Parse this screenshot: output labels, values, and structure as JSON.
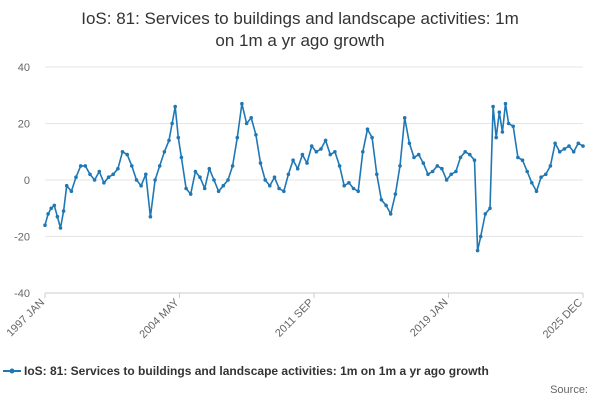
{
  "chart_data": {
    "type": "line",
    "title": "IoS: 81: Services to buildings and landscape activities: 1m on 1m a yr ago growth",
    "title_lines": [
      "IoS: 81: Services to buildings and landscape activities: 1m",
      "on 1m a yr ago growth"
    ],
    "xlabel": "",
    "ylabel": "",
    "xlim": [
      "1997-01",
      "2025-12"
    ],
    "ylim": [
      -40,
      40
    ],
    "y_ticks": [
      -40,
      -20,
      0,
      20,
      40
    ],
    "x_tick_labels": [
      "1997 JAN",
      "2004 MAY",
      "2011 SEP",
      "2019 JAN",
      "2025 DEC"
    ],
    "grid": "horizontal",
    "legend_position": "bottom",
    "line_color": "#1f78b4",
    "series": [
      {
        "name": "IoS: 81: Services to buildings and landscape activities: 1m on 1m a yr ago growth",
        "points": [
          [
            "1997-01",
            -16
          ],
          [
            "1997-03",
            -12
          ],
          [
            "1997-05",
            -10
          ],
          [
            "1997-07",
            -9
          ],
          [
            "1997-09",
            -13
          ],
          [
            "1997-11",
            -17
          ],
          [
            "1998-01",
            -11
          ],
          [
            "1998-03",
            -2
          ],
          [
            "1998-06",
            -4
          ],
          [
            "1998-09",
            1
          ],
          [
            "1998-12",
            5
          ],
          [
            "1999-03",
            5
          ],
          [
            "1999-06",
            2
          ],
          [
            "1999-09",
            0
          ],
          [
            "1999-12",
            3
          ],
          [
            "2000-03",
            -1
          ],
          [
            "2000-06",
            1
          ],
          [
            "2000-09",
            2
          ],
          [
            "2000-12",
            4
          ],
          [
            "2001-03",
            10
          ],
          [
            "2001-06",
            9
          ],
          [
            "2001-09",
            5
          ],
          [
            "2001-12",
            0
          ],
          [
            "2002-03",
            -2
          ],
          [
            "2002-06",
            2
          ],
          [
            "2002-09",
            -13
          ],
          [
            "2002-12",
            0
          ],
          [
            "2003-03",
            5
          ],
          [
            "2003-06",
            10
          ],
          [
            "2003-09",
            14
          ],
          [
            "2003-11",
            20
          ],
          [
            "2004-01",
            26
          ],
          [
            "2004-03",
            15
          ],
          [
            "2004-05",
            8
          ],
          [
            "2004-08",
            -3
          ],
          [
            "2004-11",
            -5
          ],
          [
            "2005-02",
            3
          ],
          [
            "2005-05",
            1
          ],
          [
            "2005-08",
            -3
          ],
          [
            "2005-11",
            4
          ],
          [
            "2006-02",
            0
          ],
          [
            "2006-05",
            -4
          ],
          [
            "2006-08",
            -2
          ],
          [
            "2006-11",
            0
          ],
          [
            "2007-02",
            5
          ],
          [
            "2007-05",
            15
          ],
          [
            "2007-08",
            27
          ],
          [
            "2007-11",
            20
          ],
          [
            "2008-02",
            22
          ],
          [
            "2008-05",
            16
          ],
          [
            "2008-08",
            6
          ],
          [
            "2008-11",
            0
          ],
          [
            "2009-02",
            -2
          ],
          [
            "2009-05",
            1
          ],
          [
            "2009-08",
            -3
          ],
          [
            "2009-11",
            -4
          ],
          [
            "2010-02",
            2
          ],
          [
            "2010-05",
            7
          ],
          [
            "2010-08",
            4
          ],
          [
            "2010-11",
            9
          ],
          [
            "2011-02",
            6
          ],
          [
            "2011-05",
            12
          ],
          [
            "2011-08",
            10
          ],
          [
            "2011-11",
            11
          ],
          [
            "2012-02",
            14
          ],
          [
            "2012-05",
            9
          ],
          [
            "2012-08",
            10
          ],
          [
            "2012-11",
            5
          ],
          [
            "2013-02",
            -2
          ],
          [
            "2013-05",
            -1
          ],
          [
            "2013-08",
            -3
          ],
          [
            "2013-11",
            -4
          ],
          [
            "2014-02",
            10
          ],
          [
            "2014-05",
            18
          ],
          [
            "2014-08",
            15
          ],
          [
            "2014-11",
            2
          ],
          [
            "2015-02",
            -7
          ],
          [
            "2015-05",
            -9
          ],
          [
            "2015-08",
            -12
          ],
          [
            "2015-11",
            -5
          ],
          [
            "2016-02",
            5
          ],
          [
            "2016-05",
            22
          ],
          [
            "2016-08",
            13
          ],
          [
            "2016-11",
            8
          ],
          [
            "2017-02",
            9
          ],
          [
            "2017-05",
            6
          ],
          [
            "2017-08",
            2
          ],
          [
            "2017-11",
            3
          ],
          [
            "2018-02",
            5
          ],
          [
            "2018-05",
            4
          ],
          [
            "2018-08",
            0
          ],
          [
            "2018-11",
            2
          ],
          [
            "2019-02",
            3
          ],
          [
            "2019-05",
            8
          ],
          [
            "2019-08",
            10
          ],
          [
            "2019-11",
            9
          ],
          [
            "2020-02",
            7
          ],
          [
            "2020-04",
            -25
          ],
          [
            "2020-06",
            -20
          ],
          [
            "2020-09",
            -12
          ],
          [
            "2020-12",
            -10
          ],
          [
            "2021-02",
            26
          ],
          [
            "2021-04",
            15
          ],
          [
            "2021-06",
            24
          ],
          [
            "2021-08",
            17
          ],
          [
            "2021-10",
            27
          ],
          [
            "2021-12",
            20
          ],
          [
            "2022-03",
            19
          ],
          [
            "2022-06",
            8
          ],
          [
            "2022-09",
            7
          ],
          [
            "2022-12",
            3
          ],
          [
            "2023-03",
            -1
          ],
          [
            "2023-06",
            -4
          ],
          [
            "2023-09",
            1
          ],
          [
            "2023-12",
            2
          ],
          [
            "2024-03",
            5
          ],
          [
            "2024-06",
            13
          ],
          [
            "2024-09",
            10
          ],
          [
            "2024-12",
            11
          ],
          [
            "2025-03",
            12
          ],
          [
            "2025-06",
            10
          ],
          [
            "2025-09",
            13
          ],
          [
            "2025-12",
            12
          ]
        ]
      }
    ]
  },
  "legend": {
    "label": "IoS: 81: Services to buildings and landscape activities: 1m on 1m a yr ago growth"
  },
  "source": {
    "label": "Source:"
  }
}
